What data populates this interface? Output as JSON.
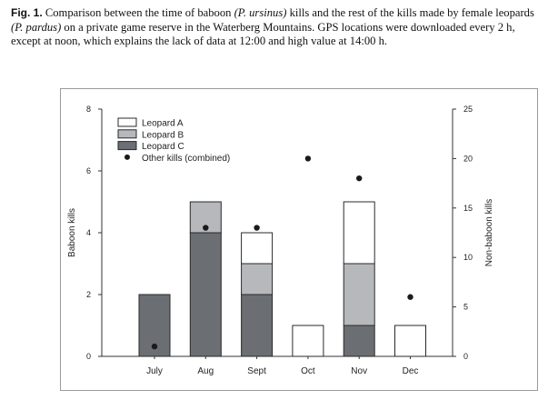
{
  "caption": {
    "label": "Fig. 1.",
    "text_1": " Comparison between the time of baboon ",
    "species_baboon": "(P. ursinus)",
    "text_2": " kills and the rest of the kills made by female leopards ",
    "species_leopard": "(P. pardus)",
    "text_3": " on a private game reserve in the Waterberg Mountains. GPS locations were downloaded every 2 h, except at noon, which explains the lack of data at 12:00 and high value at 14:00 h."
  },
  "chart_data": {
    "type": "bar",
    "stacked": true,
    "categories": [
      "July",
      "Aug",
      "Sept",
      "Oct",
      "Nov",
      "Dec"
    ],
    "series": [
      {
        "name": "Leopard C",
        "values": [
          2,
          4,
          2,
          0,
          1,
          0
        ],
        "color": "#6b6e72"
      },
      {
        "name": "Leopard B",
        "values": [
          0,
          1,
          1,
          0,
          2,
          0
        ],
        "color": "#b6b8bb"
      },
      {
        "name": "Leopard A",
        "values": [
          0,
          0,
          1,
          1,
          2,
          1
        ],
        "color": "#ffffff"
      }
    ],
    "other_kills": {
      "name": "Other kills (combined)",
      "values": [
        1,
        13,
        13,
        20,
        18,
        6
      ]
    },
    "ylabel": "Baboon kills",
    "y2label": "Non-baboon kills",
    "ylim": [
      0,
      8
    ],
    "y2lim": [
      0,
      25
    ],
    "yticks": [
      "0",
      "2",
      "4",
      "6",
      "8"
    ],
    "y2ticks": [
      "0",
      "5",
      "10",
      "15",
      "20",
      "25"
    ],
    "legend_position": "top-left",
    "legend_order": [
      "Leopard A",
      "Leopard B",
      "Leopard C",
      "Other kills (combined)"
    ],
    "grid": false
  },
  "colors": {
    "axis": "#333333",
    "bar_stroke": "#2a2a2a",
    "dot": "#1a1a1a"
  }
}
